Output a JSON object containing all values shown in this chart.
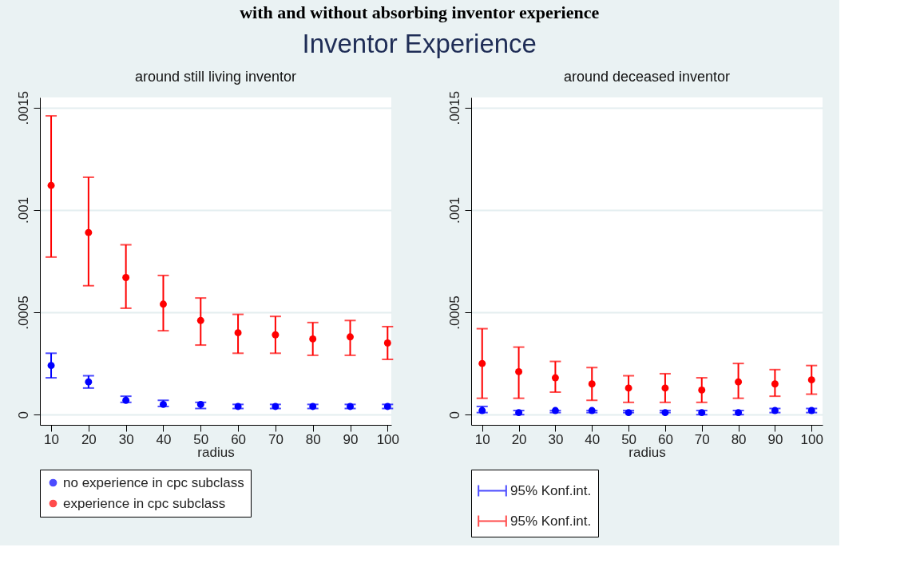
{
  "chart_data": [
    {
      "type": "scatter",
      "title": "around still living inventor",
      "xlabel": "radius",
      "annotations": [
        "with and without absorbing inventor experience",
        "Inventor Experience"
      ],
      "x": [
        10,
        20,
        30,
        40,
        50,
        60,
        70,
        80,
        90,
        100
      ],
      "series": [
        {
          "name": "no experience in cpc subclass",
          "color": "#0000ff",
          "values": [
            0.00024,
            0.00016,
            7e-05,
            5e-05,
            5e-05,
            4e-05,
            4e-05,
            4e-05,
            4e-05,
            4e-05
          ],
          "errors": [
            [
              0.00018,
              0.0003
            ],
            [
              0.00013,
              0.00019
            ],
            [
              6e-05,
              9e-05
            ],
            [
              4e-05,
              7e-05
            ],
            [
              3e-05,
              6e-05
            ],
            [
              3e-05,
              5e-05
            ],
            [
              3e-05,
              5e-05
            ],
            [
              3e-05,
              5e-05
            ],
            [
              3e-05,
              5e-05
            ],
            [
              3e-05,
              5e-05
            ]
          ]
        },
        {
          "name": "experience in cpc subclass",
          "color": "#ff0000",
          "values": [
            0.00112,
            0.00089,
            0.00067,
            0.00054,
            0.00046,
            0.0004,
            0.00039,
            0.00037,
            0.00038,
            0.00035
          ],
          "errors": [
            [
              0.00077,
              0.00146
            ],
            [
              0.00063,
              0.00116
            ],
            [
              0.00052,
              0.00083
            ],
            [
              0.00041,
              0.00068
            ],
            [
              0.00034,
              0.00057
            ],
            [
              0.0003,
              0.00049
            ],
            [
              0.0003,
              0.00048
            ],
            [
              0.00029,
              0.00045
            ],
            [
              0.00029,
              0.00046
            ],
            [
              0.00027,
              0.00043
            ]
          ]
        }
      ],
      "xlim": [
        7,
        101
      ],
      "xticks": [
        10,
        20,
        30,
        40,
        50,
        60,
        70,
        80,
        90,
        100
      ],
      "ylim": [
        -5e-05,
        0.00155
      ],
      "yticks": [
        {
          "value": 0,
          "label": "0"
        },
        {
          "value": 0.0005,
          "label": ".0005"
        },
        {
          "value": 0.001,
          "label": ".001"
        },
        {
          "value": 0.0015,
          "label": ".0015"
        }
      ],
      "grid": "y",
      "legend": "bottom",
      "marker": "circle"
    },
    {
      "type": "scatter",
      "title": "around deceased inventor",
      "xlabel": "radius",
      "x": [
        10,
        20,
        30,
        40,
        50,
        60,
        70,
        80,
        90,
        100
      ],
      "series": [
        {
          "name": "95% Konf.int.",
          "color": "#0000ff",
          "values": [
            2e-05,
            1e-05,
            2e-05,
            2e-05,
            1e-05,
            1e-05,
            1e-05,
            1e-05,
            2e-05,
            2e-05
          ],
          "errors": [
            [
              1e-05,
              4e-05
            ],
            [
              0,
              2e-05
            ],
            [
              1e-05,
              2e-05
            ],
            [
              1e-05,
              2e-05
            ],
            [
              1e-05,
              2e-05
            ],
            [
              1e-05,
              2e-05
            ],
            [
              0,
              2e-05
            ],
            [
              0,
              2e-05
            ],
            [
              1e-05,
              3e-05
            ],
            [
              1e-05,
              3e-05
            ]
          ]
        },
        {
          "name": "95% Konf.int.",
          "color": "#ff0000",
          "values": [
            0.00025,
            0.00021,
            0.00018,
            0.00015,
            0.00013,
            0.00013,
            0.00012,
            0.00016,
            0.00015,
            0.00017
          ],
          "errors": [
            [
              8e-05,
              0.00042
            ],
            [
              8e-05,
              0.00033
            ],
            [
              0.00011,
              0.00026
            ],
            [
              7e-05,
              0.00023
            ],
            [
              6e-05,
              0.00019
            ],
            [
              6e-05,
              0.0002
            ],
            [
              6e-05,
              0.00018
            ],
            [
              8e-05,
              0.00025
            ],
            [
              9e-05,
              0.00022
            ],
            [
              0.0001,
              0.00024
            ]
          ]
        }
      ],
      "xlim": [
        7,
        103
      ],
      "xticks": [
        10,
        20,
        30,
        40,
        50,
        60,
        70,
        80,
        90,
        100
      ],
      "ylim": [
        -5e-05,
        0.00155
      ],
      "yticks": [
        {
          "value": 0,
          "label": "0"
        },
        {
          "value": 0.0005,
          "label": ".0005"
        },
        {
          "value": 0.001,
          "label": ".001"
        },
        {
          "value": 0.0015,
          "label": ".0015"
        }
      ],
      "grid": "y",
      "legend": "bottom",
      "marker": "circle"
    }
  ]
}
